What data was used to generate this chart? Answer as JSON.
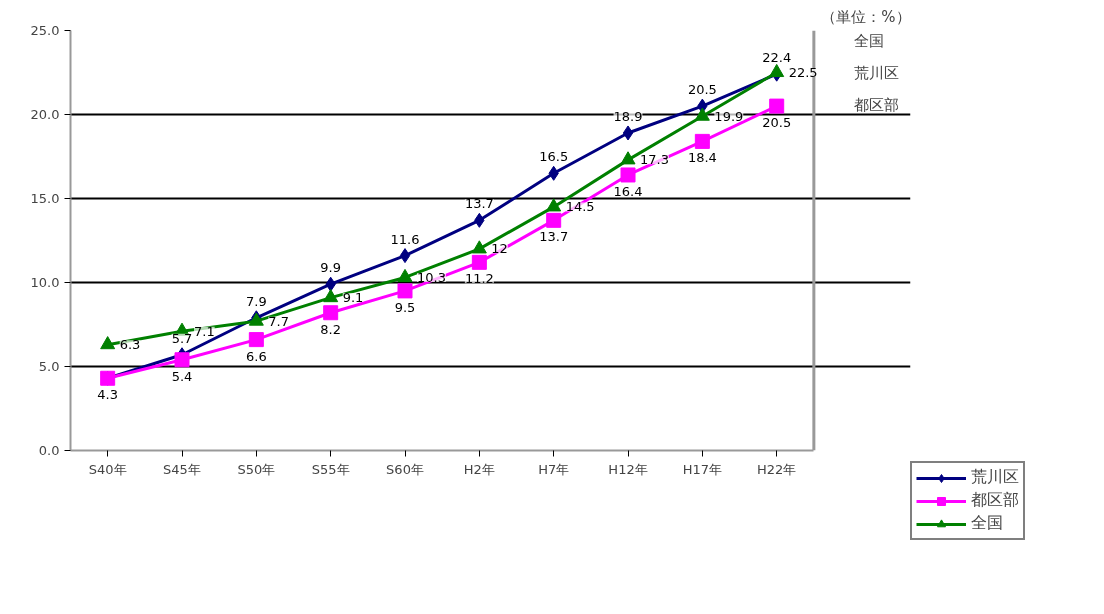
{
  "chart_data": {
    "type": "line",
    "categories": [
      "S40年",
      "S45年",
      "S50年",
      "S55年",
      "S60年",
      "H2年",
      "H7年",
      "H12年",
      "H17年",
      "H22年"
    ],
    "series": [
      {
        "name": "荒川区",
        "color": "#000080",
        "marker": "diamond",
        "values": [
          4.3,
          5.7,
          7.9,
          9.9,
          11.6,
          13.7,
          16.5,
          18.9,
          20.5,
          22.4
        ],
        "value_labels": [
          null,
          "5.7",
          "7.9",
          "9.9",
          "11.6",
          "13.7",
          "16.5",
          "18.9",
          "20.5",
          "22.4"
        ]
      },
      {
        "name": "都区部",
        "color": "#ff00ff",
        "marker": "square",
        "values": [
          4.3,
          5.4,
          6.6,
          8.2,
          9.5,
          11.2,
          13.7,
          16.4,
          18.4,
          20.5
        ],
        "value_labels": [
          "4.3",
          "5.4",
          "6.6",
          "8.2",
          "9.5",
          "11.2",
          "13.7",
          "16.4",
          "18.4",
          "20.5"
        ]
      },
      {
        "name": "全国",
        "color": "#008000",
        "marker": "triangle",
        "values": [
          6.3,
          7.1,
          7.7,
          9.1,
          10.3,
          12,
          14.5,
          17.3,
          19.9,
          22.5
        ],
        "value_labels": [
          "6.3",
          "7.1",
          "7.7",
          "9.1",
          "10.3",
          "12",
          "14.5",
          "17.3",
          "19.9",
          "22.5"
        ]
      }
    ],
    "ylim": [
      0,
      25
    ],
    "yticks": [
      {
        "value": 0,
        "label": "0.0"
      },
      {
        "value": 5,
        "label": "5.0"
      },
      {
        "value": 10,
        "label": "10.0"
      },
      {
        "value": 15,
        "label": "15.0"
      },
      {
        "value": 20,
        "label": "20.0"
      },
      {
        "value": 25,
        "label": "25.0"
      }
    ],
    "grid": "y",
    "legend": "right",
    "line_style": "solid",
    "annotations": [
      "（単位：%）"
    ]
  }
}
